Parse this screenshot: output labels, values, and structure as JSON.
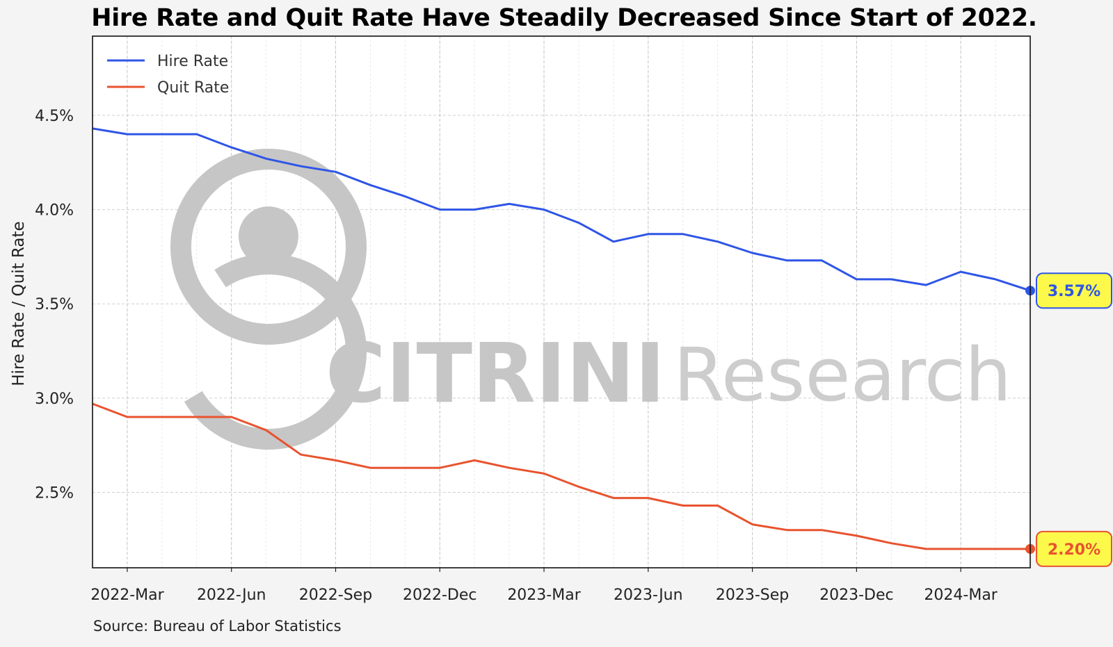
{
  "chart_data": {
    "type": "line",
    "title": "Hire Rate and Quit Rate Have Steadily Decreased Since Start of 2022.",
    "ylabel": "Hire Rate / Quit Rate",
    "xlabel": "",
    "x": [
      "2022-02",
      "2022-03",
      "2022-04",
      "2022-05",
      "2022-06",
      "2022-07",
      "2022-08",
      "2022-09",
      "2022-10",
      "2022-11",
      "2022-12",
      "2023-01",
      "2023-02",
      "2023-03",
      "2023-04",
      "2023-05",
      "2023-06",
      "2023-07",
      "2023-08",
      "2023-09",
      "2023-10",
      "2023-11",
      "2023-12",
      "2024-01",
      "2024-02",
      "2024-03",
      "2024-04",
      "2024-05"
    ],
    "x_tick_labels": [
      "2022-Mar",
      "2022-Jun",
      "2022-Sep",
      "2022-Dec",
      "2023-Mar",
      "2023-Jun",
      "2023-Sep",
      "2023-Dec",
      "2024-Mar"
    ],
    "x_tick_values": [
      "2022-03",
      "2022-06",
      "2022-09",
      "2022-12",
      "2023-03",
      "2023-06",
      "2023-09",
      "2023-12",
      "2024-03"
    ],
    "y_ticks": [
      2.5,
      3.0,
      3.5,
      4.0,
      4.5
    ],
    "y_tick_labels": [
      "2.5%",
      "3.0%",
      "3.5%",
      "4.0%",
      "4.5%"
    ],
    "ylim": [
      2.1,
      4.92
    ],
    "xlim": [
      "2022-02",
      "2024-05"
    ],
    "grid": true,
    "legend_position": "top-left",
    "series": [
      {
        "name": "Hire Rate",
        "color": "#2e55e6",
        "values": [
          4.43,
          4.4,
          4.4,
          4.4,
          4.33,
          4.27,
          4.23,
          4.2,
          4.13,
          4.07,
          4.0,
          4.0,
          4.03,
          4.0,
          3.93,
          3.83,
          3.87,
          3.87,
          3.83,
          3.77,
          3.73,
          3.73,
          3.63,
          3.63,
          3.6,
          3.67,
          3.63,
          3.57
        ],
        "end_label": "3.57%"
      },
      {
        "name": "Quit Rate",
        "color": "#e8532f",
        "values": [
          2.97,
          2.9,
          2.9,
          2.9,
          2.9,
          2.83,
          2.7,
          2.67,
          2.63,
          2.63,
          2.63,
          2.67,
          2.63,
          2.6,
          2.53,
          2.47,
          2.47,
          2.43,
          2.43,
          2.33,
          2.3,
          2.3,
          2.27,
          2.23,
          2.2,
          2.2,
          2.2,
          2.2
        ],
        "end_label": "2.20%"
      }
    ],
    "end_label_bg": "#fcf94a"
  },
  "source": "Source: Bureau of Labor Statistics",
  "watermark": {
    "bold": "CITRINI",
    "light": "Research",
    "logo_icon": "person-circle-logo"
  }
}
